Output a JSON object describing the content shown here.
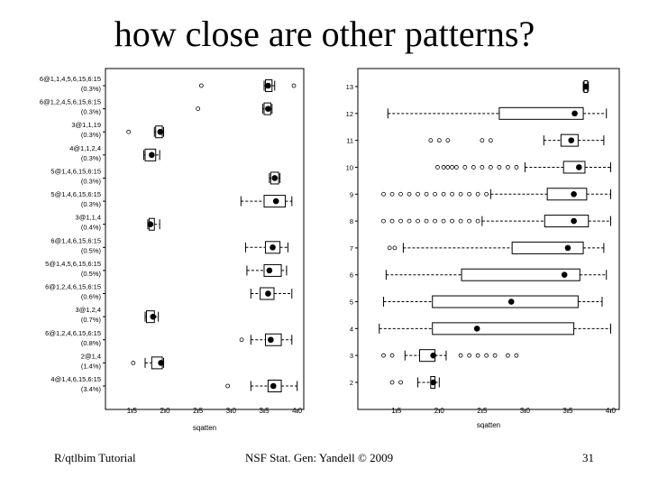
{
  "slide": {
    "title": "how close are other patterns?",
    "footer_left": "R/qtlbim Tutorial",
    "footer_center": "NSF Stat. Gen: Yandell © 2009",
    "footer_right": "31"
  },
  "chart_data": [
    {
      "type": "boxplot",
      "xlabel": "sqatten",
      "xlim": [
        1.1,
        4.1
      ],
      "xticks": [
        1.5,
        2.0,
        2.5,
        3.0,
        3.5,
        4.0
      ],
      "xtick_labels": [
        "1.5",
        "2.0",
        "2.5",
        "3.0",
        "3.5",
        "4.0"
      ],
      "grid": false,
      "categories": [
        {
          "label": "6@1,1,4,5,6,15,6:15",
          "pct": "(0.3%)",
          "q1": 3.52,
          "median": 3.56,
          "q3": 3.62,
          "wl": 3.5,
          "wh": 3.66,
          "outliers": [
            2.55,
            3.95
          ]
        },
        {
          "label": "6@1,2,4,5,6,15,6:15",
          "pct": "(0.3%)",
          "q1": 3.5,
          "median": 3.56,
          "q3": 3.6,
          "wl": 3.48,
          "wh": 3.62,
          "outliers": [
            2.5
          ]
        },
        {
          "label": "3@1,1,19",
          "pct": "(0.3%)",
          "q1": 1.86,
          "median": 1.93,
          "q3": 1.96,
          "wl": 1.84,
          "wh": 1.98,
          "outliers": [
            1.45
          ]
        },
        {
          "label": "4@1,1,2,4",
          "pct": "(0.3%)",
          "q1": 1.7,
          "median": 1.8,
          "q3": 1.86,
          "wl": 1.68,
          "wh": 1.92,
          "outliers": []
        },
        {
          "label": "5@1,4,6,15,6:15",
          "pct": "(0.3%)",
          "q1": 3.6,
          "median": 3.66,
          "q3": 3.72,
          "wl": 3.58,
          "wh": 3.74,
          "outliers": []
        },
        {
          "label": "5@1,4,6,15,6:15",
          "pct": "(0.3%)",
          "q1": 3.5,
          "median": 3.68,
          "q3": 3.82,
          "wl": 3.15,
          "wh": 3.92,
          "outliers": []
        },
        {
          "label": "3@1,1,4",
          "pct": "(0.4%)",
          "q1": 1.76,
          "median": 1.78,
          "q3": 1.84,
          "wl": 1.74,
          "wh": 1.92,
          "outliers": []
        },
        {
          "label": "6@1,4,6,15,6:15",
          "pct": "(0.5%)",
          "q1": 3.52,
          "median": 3.63,
          "q3": 3.74,
          "wl": 3.22,
          "wh": 3.86,
          "outliers": []
        },
        {
          "label": "5@1,4,5,6,15,6:15",
          "pct": "(0.5%)",
          "q1": 3.5,
          "median": 3.58,
          "q3": 3.76,
          "wl": 3.24,
          "wh": 3.84,
          "outliers": []
        },
        {
          "label": "6@1,2,4,6,15,6:15",
          "pct": "(0.6%)",
          "q1": 3.44,
          "median": 3.56,
          "q3": 3.65,
          "wl": 3.3,
          "wh": 3.92,
          "outliers": []
        },
        {
          "label": "3@1,2,4",
          "pct": "(0.7%)",
          "q1": 1.72,
          "median": 1.82,
          "q3": 1.84,
          "wl": 1.7,
          "wh": 1.9,
          "outliers": []
        },
        {
          "label": "6@1,2,4,6,15,6:15",
          "pct": "(0.8%)",
          "q1": 3.52,
          "median": 3.6,
          "q3": 3.76,
          "wl": 3.3,
          "wh": 3.92,
          "outliers": [
            3.16
          ]
        },
        {
          "label": "2@1,4",
          "pct": "(1.4%)",
          "q1": 1.8,
          "median": 1.94,
          "q3": 1.96,
          "wl": 1.7,
          "wh": 1.98,
          "outliers": [
            1.52
          ]
        },
        {
          "label": "4@1,4,6,15,6:15",
          "pct": "(3.4%)",
          "q1": 3.56,
          "median": 3.64,
          "q3": 3.76,
          "wl": 3.3,
          "wh": 4.0,
          "outliers": [
            2.95
          ]
        }
      ]
    },
    {
      "type": "boxplot",
      "xlabel": "sqatten",
      "xlim": [
        1.05,
        4.1
      ],
      "xticks": [
        1.5,
        2.0,
        2.5,
        3.0,
        3.5,
        4.0
      ],
      "xtick_labels": [
        "1.5",
        "2.0",
        "2.5",
        "3.0",
        "3.5",
        "4.0"
      ],
      "grid": false,
      "categories": [
        {
          "label": "13",
          "q1": 3.69,
          "median": 3.71,
          "q3": 3.73,
          "wl": 3.68,
          "wh": 3.74,
          "outliers": []
        },
        {
          "label": "12",
          "q1": 2.7,
          "median": 3.58,
          "q3": 3.68,
          "wl": 1.4,
          "wh": 3.95,
          "outliers": []
        },
        {
          "label": "11",
          "q1": 3.42,
          "median": 3.54,
          "q3": 3.62,
          "wl": 3.22,
          "wh": 3.92,
          "outliers": [
            1.9,
            2.0,
            2.1,
            2.5,
            2.6
          ]
        },
        {
          "label": "10",
          "q1": 3.45,
          "median": 3.63,
          "q3": 3.7,
          "wl": 3.0,
          "wh": 4.0,
          "outliers": [
            1.98,
            2.05,
            2.1,
            2.15,
            2.2,
            2.3,
            2.4,
            2.5,
            2.6,
            2.7,
            2.8,
            2.9
          ]
        },
        {
          "label": "9",
          "q1": 3.26,
          "median": 3.57,
          "q3": 3.72,
          "wl": 2.6,
          "wh": 4.0,
          "outliers": [
            1.35,
            1.45,
            1.55,
            1.65,
            1.75,
            1.85,
            1.95,
            2.05,
            2.15,
            2.25,
            2.35,
            2.45,
            2.55
          ]
        },
        {
          "label": "8",
          "q1": 3.23,
          "median": 3.57,
          "q3": 3.74,
          "wl": 2.5,
          "wh": 4.0,
          "outliers": [
            1.35,
            1.45,
            1.55,
            1.65,
            1.75,
            1.85,
            1.95,
            2.05,
            2.15,
            2.25,
            2.35,
            2.45
          ]
        },
        {
          "label": "7",
          "q1": 2.85,
          "median": 3.5,
          "q3": 3.68,
          "wl": 1.58,
          "wh": 3.92,
          "outliers": [
            1.42,
            1.48
          ]
        },
        {
          "label": "6",
          "q1": 2.26,
          "median": 3.46,
          "q3": 3.64,
          "wl": 1.38,
          "wh": 3.95,
          "outliers": []
        },
        {
          "label": "5",
          "q1": 1.92,
          "median": 2.84,
          "q3": 3.62,
          "wl": 1.35,
          "wh": 3.9,
          "outliers": []
        },
        {
          "label": "4",
          "q1": 1.92,
          "median": 2.44,
          "q3": 3.57,
          "wl": 1.3,
          "wh": 4.0,
          "outliers": []
        },
        {
          "label": "3",
          "q1": 1.77,
          "median": 1.93,
          "q3": 1.95,
          "wl": 1.6,
          "wh": 2.08,
          "outliers": [
            1.35,
            1.45,
            2.25,
            2.35,
            2.45,
            2.55,
            2.65,
            2.8,
            2.9
          ]
        },
        {
          "label": "2",
          "q1": 1.9,
          "median": 1.93,
          "q3": 1.95,
          "wl": 1.75,
          "wh": 2.0,
          "outliers": [
            1.45,
            1.55
          ]
        }
      ]
    }
  ]
}
